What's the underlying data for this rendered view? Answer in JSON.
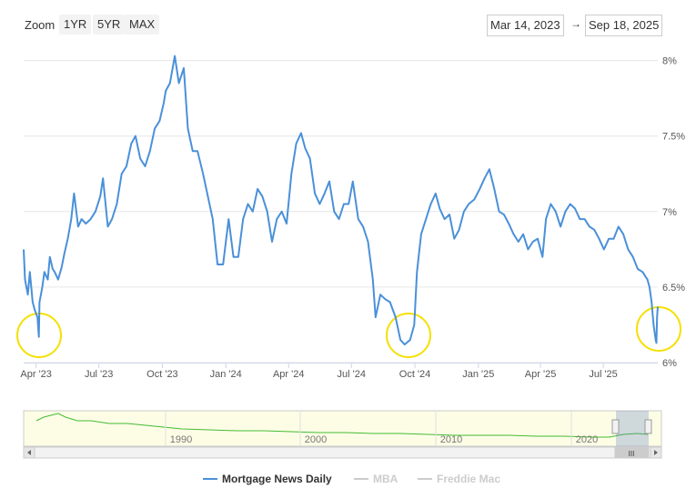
{
  "toolbar": {
    "zoom_label": "Zoom",
    "buttons": [
      "1YR",
      "5YR",
      "MAX"
    ],
    "date_from": "Mar 14, 2023",
    "date_arrow": "→",
    "date_to": "Sep 18, 2025"
  },
  "colors": {
    "series_main": "#4a90d9",
    "navigator_line": "#44bb33",
    "navigator_fill": "#fdfde6",
    "highlight_circle": "#f5e000",
    "grid": "#e6e6e6",
    "legend_hidden": "#cccccc"
  },
  "legend": [
    {
      "name": "Mortgage News Daily",
      "visible": true
    },
    {
      "name": "MBA",
      "visible": false
    },
    {
      "name": "Freddie Mac",
      "visible": false
    }
  ],
  "navigator": {
    "tick_labels": [
      "1990",
      "2000",
      "2010",
      "2020"
    ],
    "handle_label": "III"
  },
  "chart_data": {
    "type": "line",
    "title": "",
    "xlabel": "",
    "ylabel": "",
    "y_axis_side": "right",
    "ylim": [
      6.0,
      8.1
    ],
    "y_ticks": [
      6.0,
      6.5,
      7.0,
      7.5,
      8.0
    ],
    "y_tick_labels": [
      "6%",
      "6.5%",
      "7%",
      "7.5%",
      "8%"
    ],
    "x_ticks": [
      "2023-04-01",
      "2023-07-01",
      "2023-10-01",
      "2024-01-01",
      "2024-04-01",
      "2024-07-01",
      "2024-10-01",
      "2025-01-01",
      "2025-04-01",
      "2025-07-01"
    ],
    "x_tick_labels": [
      "Apr '23",
      "Jul '23",
      "Oct '23",
      "Jan '24",
      "Apr '24",
      "Jul '24",
      "Oct '24",
      "Jan '25",
      "Apr '25",
      "Jul '25"
    ],
    "xlim": [
      "2023-03-14",
      "2025-09-18"
    ],
    "grid": true,
    "legend_position": "bottom",
    "series": [
      {
        "name": "Mortgage News Daily",
        "x": [
          "2023-03-14",
          "2023-03-16",
          "2023-03-20",
          "2023-03-23",
          "2023-03-27",
          "2023-03-30",
          "2023-04-03",
          "2023-04-05",
          "2023-04-06",
          "2023-04-10",
          "2023-04-13",
          "2023-04-18",
          "2023-04-21",
          "2023-04-25",
          "2023-04-28",
          "2023-05-03",
          "2023-05-08",
          "2023-05-12",
          "2023-05-17",
          "2023-05-22",
          "2023-05-26",
          "2023-06-01",
          "2023-06-06",
          "2023-06-12",
          "2023-06-19",
          "2023-06-26",
          "2023-07-03",
          "2023-07-07",
          "2023-07-14",
          "2023-07-20",
          "2023-07-27",
          "2023-08-03",
          "2023-08-10",
          "2023-08-17",
          "2023-08-23",
          "2023-08-30",
          "2023-09-06",
          "2023-09-13",
          "2023-09-20",
          "2023-09-27",
          "2023-10-03",
          "2023-10-06",
          "2023-10-12",
          "2023-10-19",
          "2023-10-25",
          "2023-11-01",
          "2023-11-07",
          "2023-11-14",
          "2023-11-21",
          "2023-11-29",
          "2023-12-06",
          "2023-12-13",
          "2023-12-20",
          "2023-12-28",
          "2024-01-05",
          "2024-01-12",
          "2024-01-19",
          "2024-01-26",
          "2024-02-02",
          "2024-02-09",
          "2024-02-16",
          "2024-02-23",
          "2024-03-01",
          "2024-03-08",
          "2024-03-15",
          "2024-03-22",
          "2024-03-29",
          "2024-04-05",
          "2024-04-12",
          "2024-04-19",
          "2024-04-25",
          "2024-05-02",
          "2024-05-09",
          "2024-05-16",
          "2024-05-23",
          "2024-05-30",
          "2024-06-06",
          "2024-06-13",
          "2024-06-20",
          "2024-06-27",
          "2024-07-03",
          "2024-07-11",
          "2024-07-18",
          "2024-07-25",
          "2024-08-01",
          "2024-08-05",
          "2024-08-12",
          "2024-08-19",
          "2024-08-26",
          "2024-09-03",
          "2024-09-10",
          "2024-09-16",
          "2024-09-24",
          "2024-09-30",
          "2024-10-04",
          "2024-10-10",
          "2024-10-17",
          "2024-10-24",
          "2024-10-31",
          "2024-11-06",
          "2024-11-13",
          "2024-11-20",
          "2024-11-27",
          "2024-12-04",
          "2024-12-11",
          "2024-12-18",
          "2024-12-26",
          "2025-01-03",
          "2025-01-10",
          "2025-01-17",
          "2025-01-24",
          "2025-01-31",
          "2025-02-07",
          "2025-02-14",
          "2025-02-21",
          "2025-02-28",
          "2025-03-07",
          "2025-03-14",
          "2025-03-21",
          "2025-03-28",
          "2025-04-04",
          "2025-04-09",
          "2025-04-16",
          "2025-04-23",
          "2025-04-30",
          "2025-05-07",
          "2025-05-14",
          "2025-05-21",
          "2025-05-28",
          "2025-06-04",
          "2025-06-11",
          "2025-06-18",
          "2025-06-25",
          "2025-07-02",
          "2025-07-09",
          "2025-07-16",
          "2025-07-23",
          "2025-07-30",
          "2025-08-06",
          "2025-08-13",
          "2025-08-20",
          "2025-08-27",
          "2025-09-03",
          "2025-09-06",
          "2025-09-09",
          "2025-09-12",
          "2025-09-15",
          "2025-09-16",
          "2025-09-17",
          "2025-09-18"
        ],
        "values": [
          6.75,
          6.55,
          6.45,
          6.6,
          6.4,
          6.35,
          6.3,
          6.17,
          6.4,
          6.5,
          6.6,
          6.55,
          6.7,
          6.62,
          6.6,
          6.55,
          6.63,
          6.72,
          6.82,
          6.95,
          7.12,
          6.9,
          6.95,
          6.92,
          6.95,
          7.0,
          7.1,
          7.22,
          6.9,
          6.95,
          7.05,
          7.25,
          7.3,
          7.45,
          7.5,
          7.35,
          7.3,
          7.4,
          7.55,
          7.6,
          7.72,
          7.8,
          7.85,
          8.03,
          7.85,
          7.95,
          7.55,
          7.4,
          7.4,
          7.25,
          7.1,
          6.95,
          6.65,
          6.65,
          6.95,
          6.7,
          6.7,
          6.95,
          7.05,
          7.0,
          7.15,
          7.1,
          7.0,
          6.8,
          6.95,
          7.0,
          6.92,
          7.25,
          7.45,
          7.52,
          7.42,
          7.35,
          7.12,
          7.05,
          7.12,
          7.2,
          7.0,
          6.95,
          7.05,
          7.05,
          7.2,
          6.95,
          6.9,
          6.8,
          6.55,
          6.3,
          6.45,
          6.42,
          6.4,
          6.3,
          6.15,
          6.12,
          6.15,
          6.25,
          6.6,
          6.85,
          6.95,
          7.05,
          7.12,
          7.02,
          6.95,
          6.98,
          6.82,
          6.88,
          7.0,
          7.05,
          7.08,
          7.15,
          7.22,
          7.28,
          7.15,
          7.0,
          6.98,
          6.92,
          6.85,
          6.8,
          6.85,
          6.75,
          6.8,
          6.82,
          6.7,
          6.95,
          7.05,
          7.0,
          6.9,
          7.0,
          7.05,
          7.02,
          6.95,
          6.95,
          6.9,
          6.88,
          6.82,
          6.75,
          6.82,
          6.82,
          6.9,
          6.85,
          6.75,
          6.7,
          6.62,
          6.6,
          6.55,
          6.5,
          6.4,
          6.25,
          6.15,
          6.13,
          6.3,
          6.37
        ]
      }
    ]
  }
}
